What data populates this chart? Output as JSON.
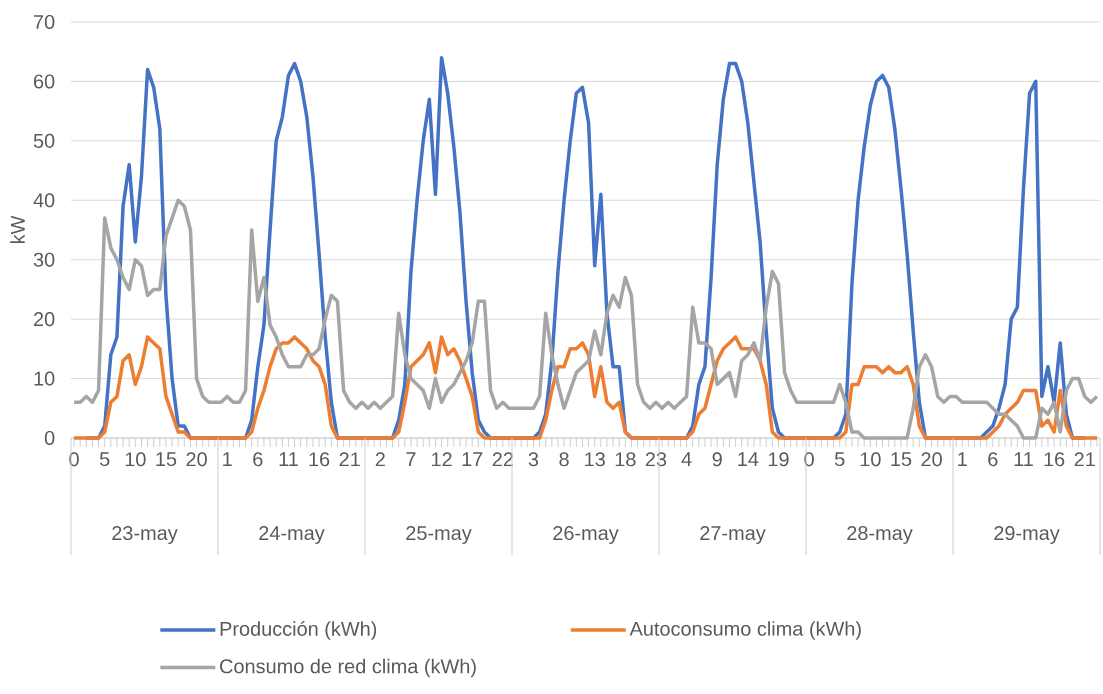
{
  "chart_data": {
    "type": "line",
    "ylabel": "kW",
    "categories": [
      "0",
      null,
      null,
      null,
      null,
      "5",
      null,
      null,
      null,
      null,
      "10",
      null,
      null,
      null,
      null,
      "15",
      null,
      null,
      null,
      null,
      "20",
      null,
      null,
      null,
      null,
      "1",
      null,
      null,
      null,
      null,
      "6",
      null,
      null,
      null,
      null,
      "11",
      null,
      null,
      null,
      null,
      "16",
      null,
      null,
      null,
      null,
      "21",
      null,
      null,
      null,
      null,
      "2",
      null,
      null,
      null,
      null,
      "7",
      null,
      null,
      null,
      null,
      "12",
      null,
      null,
      null,
      null,
      "17",
      null,
      null,
      null,
      null,
      "22",
      null,
      null,
      null,
      null,
      "3",
      null,
      null,
      null,
      null,
      "8",
      null,
      null,
      null,
      null,
      "13",
      null,
      null,
      null,
      null,
      "18",
      null,
      null,
      null,
      null,
      "23",
      null,
      null,
      null,
      null,
      "4",
      null,
      null,
      null,
      null,
      "9",
      null,
      null,
      null,
      null,
      "14",
      null,
      null,
      null,
      null,
      "19",
      null,
      null,
      null,
      null,
      "0",
      null,
      null,
      null,
      null,
      "5",
      null,
      null,
      null,
      null,
      "10",
      null,
      null,
      null,
      null,
      "15",
      null,
      null,
      null,
      null,
      "20",
      null,
      null,
      null,
      null,
      "1",
      null,
      null,
      null,
      null,
      "6",
      null,
      null,
      null,
      null,
      "11",
      null,
      null,
      null,
      null,
      "16",
      null,
      null,
      null,
      null,
      "21",
      null,
      null
    ],
    "series": [
      {
        "name": "Producción (kWh)",
        "color": "#4472c4",
        "values": [
          null,
          null,
          0,
          0,
          0,
          2,
          14,
          17,
          39,
          46,
          33,
          44,
          62,
          59,
          52,
          24,
          10,
          2,
          2,
          0,
          0,
          0,
          0,
          0,
          0,
          0,
          0,
          0,
          0,
          3,
          12,
          19,
          35,
          50,
          54,
          61,
          63,
          60,
          54,
          44,
          31,
          17,
          6,
          0,
          0,
          0,
          0,
          0,
          0,
          0,
          0,
          0,
          0,
          3,
          9,
          28,
          40,
          50,
          57,
          41,
          64,
          58,
          49,
          38,
          23,
          11,
          3,
          1,
          0,
          0,
          0,
          0,
          0,
          0,
          0,
          0,
          1,
          4,
          13,
          28,
          40,
          50,
          58,
          59,
          53,
          29,
          41,
          21,
          12,
          12,
          1,
          0,
          0,
          0,
          0,
          0,
          0,
          0,
          0,
          0,
          0,
          2,
          9,
          12,
          27,
          46,
          57,
          63,
          63,
          60,
          53,
          43,
          33,
          18,
          5,
          1,
          0,
          0,
          0,
          0,
          0,
          0,
          0,
          0,
          0,
          1,
          4,
          26,
          40,
          49,
          56,
          60,
          61,
          59,
          52,
          42,
          31,
          18,
          6,
          0,
          0,
          0,
          0,
          0,
          0,
          0,
          0,
          0,
          0,
          1,
          2,
          5,
          9,
          20,
          22,
          42,
          58,
          60,
          7,
          12,
          6,
          16,
          4,
          0,
          0,
          0,
          null,
          null
        ]
      },
      {
        "name": "Autoconsumo clima (kWh)",
        "color": "#ed7d31",
        "values": [
          0,
          0,
          0,
          0,
          0,
          1,
          6,
          7,
          13,
          14,
          9,
          12,
          17,
          16,
          15,
          7,
          4,
          1,
          1,
          0,
          0,
          0,
          0,
          0,
          0,
          0,
          0,
          0,
          0,
          1,
          5,
          8,
          12,
          15,
          16,
          16,
          17,
          16,
          15,
          13,
          12,
          9,
          2,
          0,
          0,
          0,
          0,
          0,
          0,
          0,
          0,
          0,
          0,
          1,
          6,
          12,
          13,
          14,
          16,
          11,
          17,
          14,
          15,
          13,
          10,
          7,
          1,
          0,
          0,
          0,
          0,
          0,
          0,
          0,
          0,
          0,
          0,
          3,
          8,
          12,
          12,
          15,
          15,
          16,
          14,
          7,
          12,
          6,
          5,
          6,
          1,
          0,
          0,
          0,
          0,
          0,
          0,
          0,
          0,
          0,
          0,
          1,
          4,
          5,
          9,
          13,
          15,
          16,
          17,
          15,
          15,
          15,
          13,
          9,
          1,
          0,
          0,
          0,
          0,
          0,
          0,
          0,
          0,
          0,
          0,
          0,
          1,
          9,
          9,
          12,
          12,
          12,
          11,
          12,
          11,
          11,
          12,
          9,
          2,
          0,
          0,
          0,
          0,
          0,
          0,
          0,
          0,
          0,
          0,
          0,
          1,
          2,
          4,
          5,
          6,
          8,
          8,
          8,
          2,
          3,
          1,
          8,
          2,
          0,
          0,
          0,
          0,
          0
        ]
      },
      {
        "name": "Consumo de red clima (kWh)",
        "color": "#a5a5a5",
        "values": [
          6,
          6,
          7,
          6,
          8,
          37,
          32,
          30,
          27,
          25,
          30,
          29,
          24,
          25,
          25,
          34,
          37,
          40,
          39,
          35,
          10,
          7,
          6,
          6,
          6,
          7,
          6,
          6,
          8,
          35,
          23,
          27,
          19,
          17,
          14,
          12,
          12,
          12,
          14,
          14,
          15,
          20,
          24,
          23,
          8,
          6,
          5,
          6,
          5,
          6,
          5,
          6,
          7,
          21,
          14,
          10,
          9,
          8,
          5,
          10,
          6,
          8,
          9,
          11,
          13,
          16,
          23,
          23,
          8,
          5,
          6,
          5,
          5,
          5,
          5,
          5,
          7,
          21,
          14,
          9,
          5,
          8,
          11,
          12,
          13,
          18,
          14,
          21,
          24,
          22,
          27,
          24,
          9,
          6,
          5,
          6,
          5,
          6,
          5,
          6,
          7,
          22,
          16,
          16,
          15,
          9,
          10,
          11,
          7,
          13,
          14,
          16,
          13,
          22,
          28,
          26,
          11,
          8,
          6,
          6,
          6,
          6,
          6,
          6,
          6,
          9,
          6,
          1,
          1,
          0,
          0,
          0,
          0,
          0,
          0,
          0,
          0,
          5,
          12,
          14,
          12,
          7,
          6,
          7,
          7,
          6,
          6,
          6,
          6,
          6,
          5,
          4,
          4,
          3,
          2,
          0,
          0,
          0,
          5,
          4,
          6,
          1,
          8,
          10,
          10,
          7,
          6,
          7
        ]
      }
    ],
    "annotations": [
      "23-may",
      "24-may",
      "25-may",
      "26-may",
      "27-may",
      "28-may",
      "29-may"
    ],
    "ylim": [
      0,
      70
    ],
    "yticks": [
      0,
      10,
      20,
      30,
      40,
      50,
      60,
      70
    ],
    "grid": "y",
    "legend": "bottom",
    "marker": "none",
    "line_style": "solid"
  }
}
